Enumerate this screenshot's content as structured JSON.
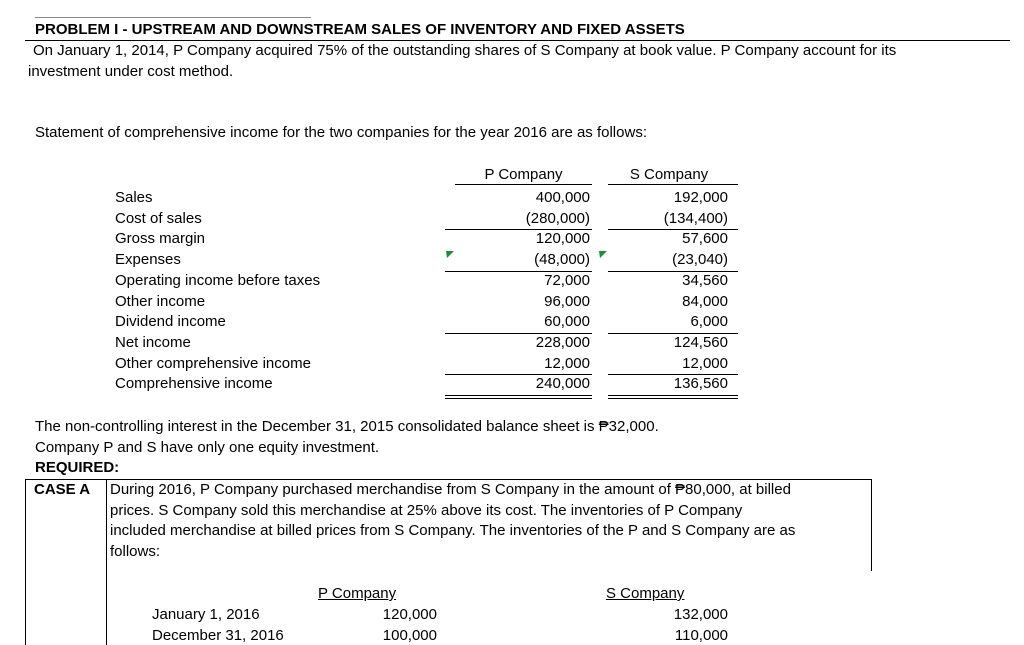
{
  "header": {
    "title": "PROBLEM I - UPSTREAM AND DOWNSTREAM SALES OF INVENTORY AND FIXED ASSETS"
  },
  "intro": [
    "On January 1, 2014, P Company acquired 75% of the outstanding shares of S Company at book value.  P Company account for its",
    "investment under cost method."
  ],
  "statement": {
    "heading": "Statement of comprehensive income for the two companies for the year 2016 are as follows:",
    "columns": [
      "P Company",
      "S Company"
    ],
    "rows": [
      [
        "Sales",
        "400,000",
        "192,000"
      ],
      [
        "Cost of sales",
        "(280,000)",
        "(134,400)"
      ],
      [
        "Gross margin",
        "120,000",
        "57,600"
      ],
      [
        "Expenses",
        "(48,000)",
        "(23,040)"
      ],
      [
        "Operating income before taxes",
        "72,000",
        "34,560"
      ],
      [
        "Other income",
        "96,000",
        "84,000"
      ],
      [
        "Dividend income",
        "60,000",
        "6,000"
      ],
      [
        "Net income",
        "228,000",
        "124,560"
      ],
      [
        "Other comprehensive income",
        "12,000",
        "12,000"
      ],
      [
        "Comprehensive income",
        "240,000",
        "136,560"
      ]
    ]
  },
  "notes": [
    "The non-controlling interest in the December 31, 2015 consolidated balance sheet is ₱32,000.",
    "Company P and S have only one equity investment."
  ],
  "required": "REQUIRED:",
  "case_a": {
    "label": "CASE A",
    "text": [
      "During 2016, P Company purchased merchandise from S Company in the amount of ₱80,000, at billed",
      "prices.  S Company sold this merchandise at 25% above its cost.  The inventories of P Company",
      "included merchandise at billed prices from S Company.  The inventories of the P and S Company are as",
      "follows:"
    ],
    "inventory": {
      "columns": [
        "P Company",
        "S Company"
      ],
      "rows": [
        [
          "January 1, 2016",
          "120,000",
          "132,000"
        ],
        [
          "December 31, 2016",
          "100,000",
          "110,000"
        ]
      ]
    }
  }
}
